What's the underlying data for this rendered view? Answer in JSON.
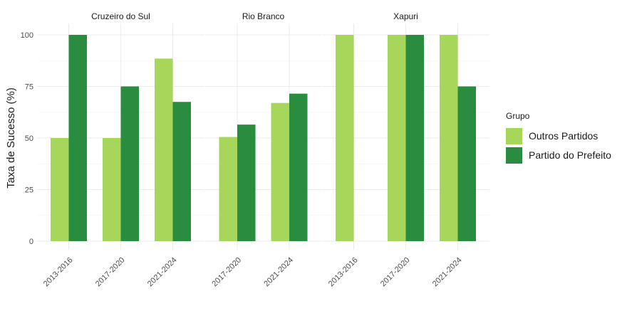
{
  "chart_data": {
    "type": "bar",
    "ylabel": "Taxa de Sucesso (%)",
    "ylim": [
      0,
      100
    ],
    "yticks": [
      0,
      25,
      50,
      75,
      100
    ],
    "grid": true,
    "legend": {
      "title": "Grupo",
      "placement": "right",
      "entries": [
        {
          "name": "Outros Partidos",
          "color": "#a6d75b"
        },
        {
          "name": "Partido do Prefeito",
          "color": "#2a8c3f"
        }
      ]
    },
    "panels": [
      {
        "title": "Cruzeiro do Sul",
        "categories": [
          "2013-2016",
          "2017-2020",
          "2021-2024"
        ],
        "series": [
          {
            "name": "Outros Partidos",
            "values": [
              50,
              50,
              88.5
            ]
          },
          {
            "name": "Partido do Prefeito",
            "values": [
              100,
              75,
              67.5
            ]
          }
        ]
      },
      {
        "title": "Rio Branco",
        "categories": [
          "2017-2020",
          "2021-2024"
        ],
        "series": [
          {
            "name": "Outros Partidos",
            "values": [
              50.5,
              67
            ]
          },
          {
            "name": "Partido do Prefeito",
            "values": [
              56.5,
              71.5
            ]
          }
        ]
      },
      {
        "title": "Xapuri",
        "categories": [
          "2013-2016",
          "2017-2020",
          "2021-2024"
        ],
        "series": [
          {
            "name": "Outros Partidos",
            "values": [
              100,
              100,
              100
            ]
          },
          {
            "name": "Partido do Prefeito",
            "values": [
              null,
              100,
              75
            ]
          }
        ]
      }
    ]
  }
}
